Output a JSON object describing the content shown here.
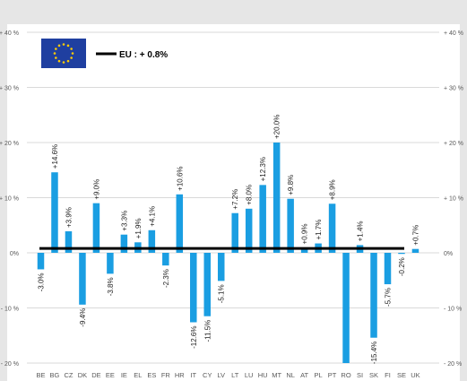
{
  "chart_data": {
    "type": "bar",
    "categories": [
      "BE",
      "BG",
      "CZ",
      "DK",
      "DE",
      "EE",
      "IE",
      "EL",
      "ES",
      "FR",
      "HR",
      "IT",
      "CY",
      "LV",
      "LT",
      "LU",
      "HU",
      "MT",
      "NL",
      "AT",
      "PL",
      "PT",
      "RO",
      "SI",
      "SK",
      "FI",
      "SE",
      "UK"
    ],
    "values": [
      -3.0,
      14.6,
      3.9,
      -9.4,
      9.0,
      -3.8,
      3.3,
      1.9,
      4.1,
      -2.3,
      10.6,
      -12.6,
      -11.5,
      -5.1,
      7.2,
      8.0,
      12.3,
      20.0,
      9.8,
      0.9,
      1.7,
      8.9,
      -20.5,
      1.4,
      -15.4,
      -5.7,
      -0.2,
      0.7
    ],
    "data_labels": [
      "-3.0%",
      "+14.6%",
      "+3.9%",
      "-9.4%",
      "+9.0%",
      "-3.8%",
      "+3.3%",
      "+1.9%",
      "+4.1%",
      "-2.3%",
      "+10.6%",
      "-12.6%",
      "-11.5%",
      "-5.1%",
      "+7.2%",
      "+8.0%",
      "+12.3%",
      "+20.0%",
      "+9.8%",
      "+0.9%",
      "+1.7%",
      "+8.9%",
      "",
      "+1.4%",
      "-15.4%",
      "-5.7%",
      "-0.2%",
      "+0.7%"
    ],
    "yticks": [
      40,
      30,
      20,
      10,
      0,
      -10,
      -20
    ],
    "ytick_labels": [
      "+ 40 %",
      "+ 30 %",
      "+ 20 %",
      "+ 10 %",
      "0%",
      "- 10 %",
      "- 20 %"
    ],
    "ylim": [
      -20,
      40
    ],
    "reference_line": {
      "label": "EU : + 0.8%",
      "value": 0.8
    },
    "grid": true,
    "legend_position": "top-left",
    "bar_color": "#1a9ee2",
    "line_color": "#000000",
    "flag_color": "#1f3fa0",
    "flag_star_color": "#ffcc00"
  }
}
